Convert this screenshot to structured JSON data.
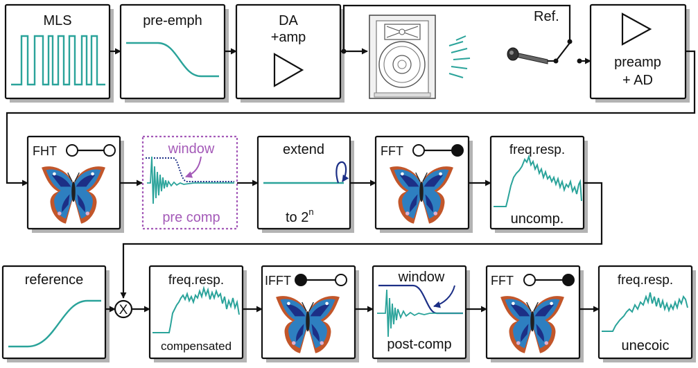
{
  "colors": {
    "teal": "#2aa39a",
    "navy": "#1c2f86",
    "purple": "#a45ab8",
    "box_border": "#111111",
    "shadow": "#b3b3b3"
  },
  "row1": {
    "mls": {
      "label": "MLS"
    },
    "pre_emph": {
      "label": "pre-emph"
    },
    "da_amp": {
      "line1": "DA",
      "line2": "+amp"
    },
    "speaker": {
      "icon": "loudspeaker-icon"
    },
    "ref_switch": {
      "label": "Ref.",
      "icon": "microphone-icon"
    },
    "preamp_ad": {
      "line1": "preamp",
      "line2": "+ AD"
    }
  },
  "row2": {
    "fht": {
      "label": "FHT",
      "icon": "butterfly-icon"
    },
    "window_pre": {
      "label_top": "window",
      "label_bottom": "pre comp"
    },
    "extend": {
      "label_top": "extend",
      "label_bottom_base": "to 2",
      "label_bottom_sup": "n"
    },
    "fft1": {
      "label": "FFT",
      "icon": "butterfly-icon"
    },
    "freq_uncomp": {
      "label_top": "freq.resp.",
      "label_bottom": "uncomp."
    }
  },
  "row3": {
    "reference": {
      "label": "reference"
    },
    "multiply": {
      "symbol": "X"
    },
    "freq_comp": {
      "label_top": "freq.resp.",
      "label_bottom": "compensated"
    },
    "ifft": {
      "label": "IFFT",
      "icon": "butterfly-icon"
    },
    "window_post": {
      "label_top": "window",
      "label_bottom": "post-comp"
    },
    "fft2": {
      "label": "FFT",
      "icon": "butterfly-icon"
    },
    "freq_unecoic": {
      "label_top": "freq.resp.",
      "label_bottom": "unecoic"
    }
  }
}
